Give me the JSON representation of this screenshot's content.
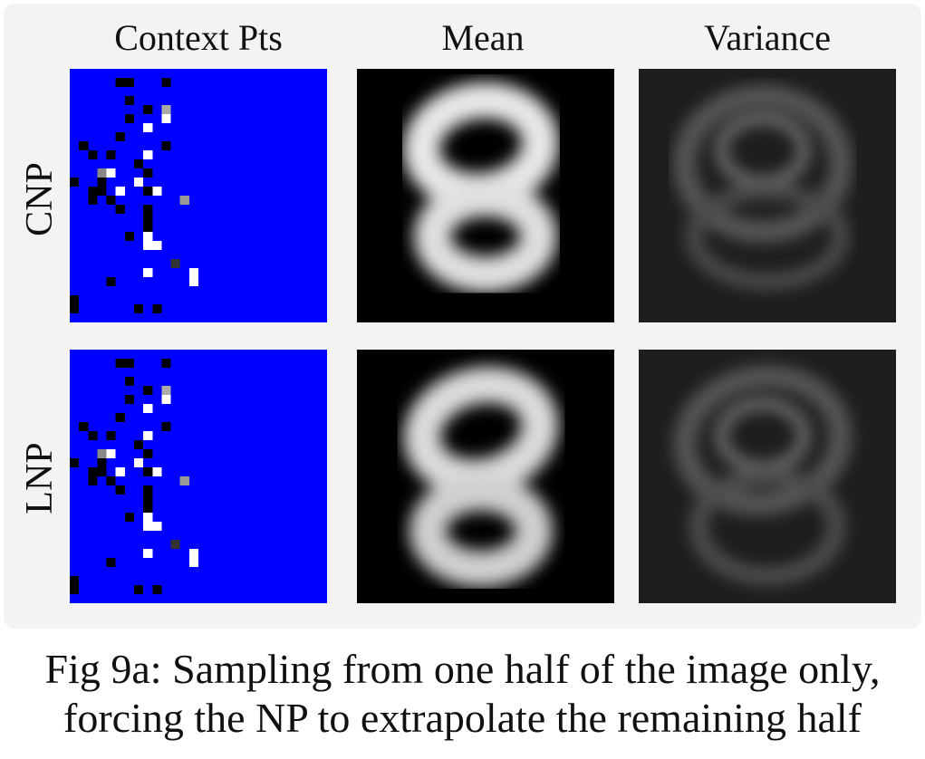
{
  "columns": [
    "Context Pts",
    "Mean",
    "Variance"
  ],
  "rows": [
    "CNP",
    "LNP"
  ],
  "caption_line1": "Fig 9a: Sampling from one half of the image only,",
  "caption_line2": "forcing the NP to extrapolate the remaining half",
  "colors": {
    "mask": "#0000ff",
    "background": "#000000",
    "panel": "#f3f3f3"
  }
}
